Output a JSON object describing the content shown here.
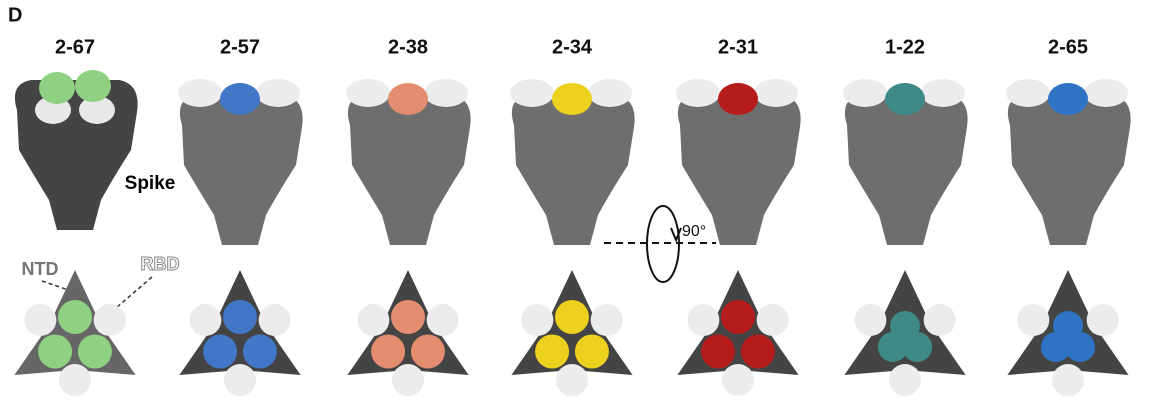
{
  "panel": "D",
  "structures": [
    {
      "label": "2-67",
      "color": "#8fd083"
    },
    {
      "label": "2-57",
      "color": "#4277c7"
    },
    {
      "label": "2-38",
      "color": "#e38e70"
    },
    {
      "label": "2-34",
      "color": "#ecd11f"
    },
    {
      "label": "2-31",
      "color": "#b71c1c"
    },
    {
      "label": "1-22",
      "color": "#3d8a87"
    },
    {
      "label": "2-65",
      "color": "#2f73c5"
    }
  ],
  "annotations": {
    "spike": "Spike",
    "ntd": "NTD",
    "rbd": "RBD",
    "rotation": "90°"
  }
}
